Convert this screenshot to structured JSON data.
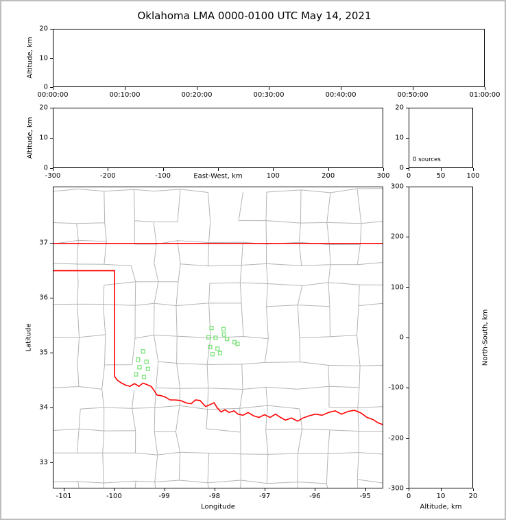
{
  "figure": {
    "title": "Oklahoma LMA 0000-0100 UTC May 14, 2021"
  },
  "chart_data": [
    {
      "id": "time_height",
      "type": "scatter",
      "xlabel": "",
      "ylabel": "Altitude, km",
      "x_ticks": [
        "00:00:00",
        "00:10:00",
        "00:20:00",
        "00:30:00",
        "00:40:00",
        "00:50:00",
        "01:00:00"
      ],
      "ylim": [
        0,
        20
      ],
      "y_ticks": [
        0,
        10,
        20
      ],
      "points": []
    },
    {
      "id": "ew_height",
      "type": "scatter",
      "xlabel": "East-West, km",
      "ylabel": "Altitude, km",
      "xlim": [
        -300,
        300
      ],
      "x_ticks": [
        -300,
        -200,
        -100,
        0,
        100,
        200,
        300
      ],
      "x_tick_labels": [
        "-300",
        "-200",
        "-100",
        "",
        "100",
        "200",
        "300"
      ],
      "ylim": [
        0,
        20
      ],
      "y_ticks": [
        0,
        10,
        20
      ],
      "points": []
    },
    {
      "id": "source_histogram",
      "type": "bar",
      "annotation": "0 sources",
      "xlim": [
        0,
        100
      ],
      "x_ticks": [
        0,
        50,
        100
      ],
      "ylim": [
        0,
        20
      ],
      "y_ticks": [
        0,
        10,
        20
      ],
      "values": []
    },
    {
      "id": "plan_view",
      "type": "scatter",
      "xlabel": "Longitude",
      "ylabel": "Latitude",
      "xlim": [
        -101.22,
        -94.64
      ],
      "x_ticks": [
        -101,
        -100,
        -99,
        -98,
        -97,
        -96,
        -95
      ],
      "ylim": [
        32.52,
        38.03
      ],
      "y_ticks": [
        33,
        34,
        35,
        36,
        37
      ],
      "colors": {
        "state_border": "#ff0000",
        "county_lines": "#b4b4b4",
        "station_marker": "#7be37b"
      },
      "stations": [
        {
          "lon": -98.06,
          "lat": 35.45
        },
        {
          "lon": -97.82,
          "lat": 35.43
        },
        {
          "lon": -97.81,
          "lat": 35.33
        },
        {
          "lon": -98.12,
          "lat": 35.28
        },
        {
          "lon": -97.98,
          "lat": 35.27
        },
        {
          "lon": -97.75,
          "lat": 35.25
        },
        {
          "lon": -97.6,
          "lat": 35.19
        },
        {
          "lon": -97.54,
          "lat": 35.16
        },
        {
          "lon": -98.09,
          "lat": 35.1
        },
        {
          "lon": -97.94,
          "lat": 35.07
        },
        {
          "lon": -98.04,
          "lat": 34.97
        },
        {
          "lon": -97.89,
          "lat": 34.99
        },
        {
          "lon": -99.43,
          "lat": 35.02
        },
        {
          "lon": -99.53,
          "lat": 34.87
        },
        {
          "lon": -99.36,
          "lat": 34.83
        },
        {
          "lon": -99.5,
          "lat": 34.73
        },
        {
          "lon": -99.33,
          "lat": 34.7
        },
        {
          "lon": -99.57,
          "lat": 34.6
        },
        {
          "lon": -99.41,
          "lat": 34.55
        }
      ],
      "state_border": [
        [
          [
            -101.22,
            37.0
          ],
          [
            -94.64,
            37.0
          ]
        ],
        [
          [
            -101.22,
            36.5
          ],
          [
            -100.0,
            36.5
          ],
          [
            -100.0,
            34.56
          ]
        ],
        [
          [
            -100.0,
            34.56
          ],
          [
            -99.94,
            34.49
          ],
          [
            -99.86,
            34.44
          ],
          [
            -99.77,
            34.4
          ],
          [
            -99.69,
            34.38
          ],
          [
            -99.6,
            34.43
          ],
          [
            -99.51,
            34.38
          ],
          [
            -99.43,
            34.44
          ],
          [
            -99.35,
            34.41
          ],
          [
            -99.27,
            34.38
          ],
          [
            -99.22,
            34.32
          ],
          [
            -99.15,
            34.22
          ],
          [
            -99.07,
            34.21
          ],
          [
            -98.98,
            34.18
          ],
          [
            -98.89,
            34.13
          ],
          [
            -98.79,
            34.13
          ],
          [
            -98.68,
            34.12
          ],
          [
            -98.58,
            34.08
          ],
          [
            -98.47,
            34.06
          ],
          [
            -98.38,
            34.13
          ],
          [
            -98.29,
            34.12
          ],
          [
            -98.18,
            34.01
          ],
          [
            -98.1,
            34.04
          ],
          [
            -98.01,
            34.08
          ],
          [
            -97.95,
            33.99
          ],
          [
            -97.87,
            33.91
          ],
          [
            -97.79,
            33.95
          ],
          [
            -97.71,
            33.9
          ],
          [
            -97.61,
            33.93
          ],
          [
            -97.53,
            33.87
          ],
          [
            -97.43,
            33.85
          ],
          [
            -97.33,
            33.9
          ],
          [
            -97.22,
            33.84
          ],
          [
            -97.11,
            33.81
          ],
          [
            -97.0,
            33.86
          ],
          [
            -96.89,
            33.81
          ],
          [
            -96.78,
            33.87
          ],
          [
            -96.68,
            33.81
          ],
          [
            -96.58,
            33.76
          ],
          [
            -96.46,
            33.8
          ],
          [
            -96.34,
            33.74
          ],
          [
            -96.23,
            33.8
          ],
          [
            -96.11,
            33.84
          ],
          [
            -95.98,
            33.87
          ],
          [
            -95.85,
            33.85
          ],
          [
            -95.72,
            33.9
          ],
          [
            -95.59,
            33.93
          ],
          [
            -95.46,
            33.87
          ],
          [
            -95.33,
            33.92
          ],
          [
            -95.2,
            33.94
          ],
          [
            -95.07,
            33.89
          ],
          [
            -94.95,
            33.81
          ],
          [
            -94.83,
            33.77
          ],
          [
            -94.73,
            33.71
          ],
          [
            -94.64,
            33.68
          ]
        ]
      ]
    },
    {
      "id": "ns_height",
      "type": "scatter",
      "xlabel": "Altitude, km",
      "ylabel": "North-South, km",
      "xlim": [
        0,
        20
      ],
      "x_ticks": [
        0,
        10,
        20
      ],
      "ylim": [
        -300,
        300
      ],
      "y_ticks": [
        -300,
        -200,
        -100,
        0,
        100,
        200,
        300
      ],
      "points": []
    }
  ]
}
